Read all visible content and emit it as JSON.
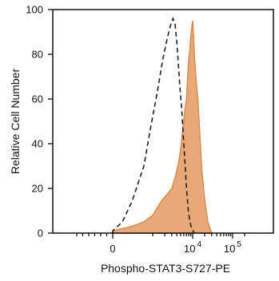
{
  "chart_data": {
    "type": "area",
    "title": "",
    "xlabel": "Phospho-STAT3-S727-PE",
    "ylabel": "Relative Cell Number",
    "xscale": "biexponential",
    "xlim": [
      -1000,
      200000
    ],
    "ylim": [
      0,
      100
    ],
    "grid": false,
    "legend": "none",
    "y_ticks": [
      0,
      20,
      40,
      60,
      80,
      100
    ],
    "x_tick_labels": [
      {
        "value": 0,
        "base": "0",
        "exp": ""
      },
      {
        "value": 10000,
        "base": "10",
        "exp": "4"
      },
      {
        "value": 100000,
        "base": "10",
        "exp": "5"
      }
    ],
    "series": [
      {
        "style": "dashed-outline",
        "color": "#222222",
        "x": [
          -200,
          0,
          150,
          300,
          600,
          900,
          1300,
          1800,
          2300,
          2800,
          3200,
          3600,
          4000,
          4400,
          4800,
          5300,
          5800,
          6400,
          7000,
          7800,
          8500,
          9500,
          11000
        ],
        "y": [
          0,
          1,
          5,
          14,
          30,
          48,
          63,
          78,
          87,
          93,
          96,
          94,
          86,
          75,
          65,
          56,
          44,
          32,
          20,
          10,
          5,
          2,
          0
        ]
      },
      {
        "style": "filled",
        "color": "#e8a878",
        "edge_color": "#d98a4e",
        "x": [
          -100,
          0,
          300,
          600,
          1000,
          1600,
          2200,
          3000,
          3800,
          4600,
          5200,
          5800,
          6400,
          7000,
          7500,
          8000,
          8500,
          9000,
          9500,
          10000,
          10500,
          11000,
          12000,
          13500,
          15000,
          17000,
          20000,
          24000,
          30000
        ],
        "y": [
          0,
          1,
          3,
          5,
          8,
          14,
          17,
          20,
          26,
          33,
          40,
          48,
          55,
          60,
          70,
          78,
          82,
          88,
          92,
          95,
          88,
          80,
          70,
          60,
          45,
          28,
          15,
          5,
          0
        ]
      }
    ]
  }
}
